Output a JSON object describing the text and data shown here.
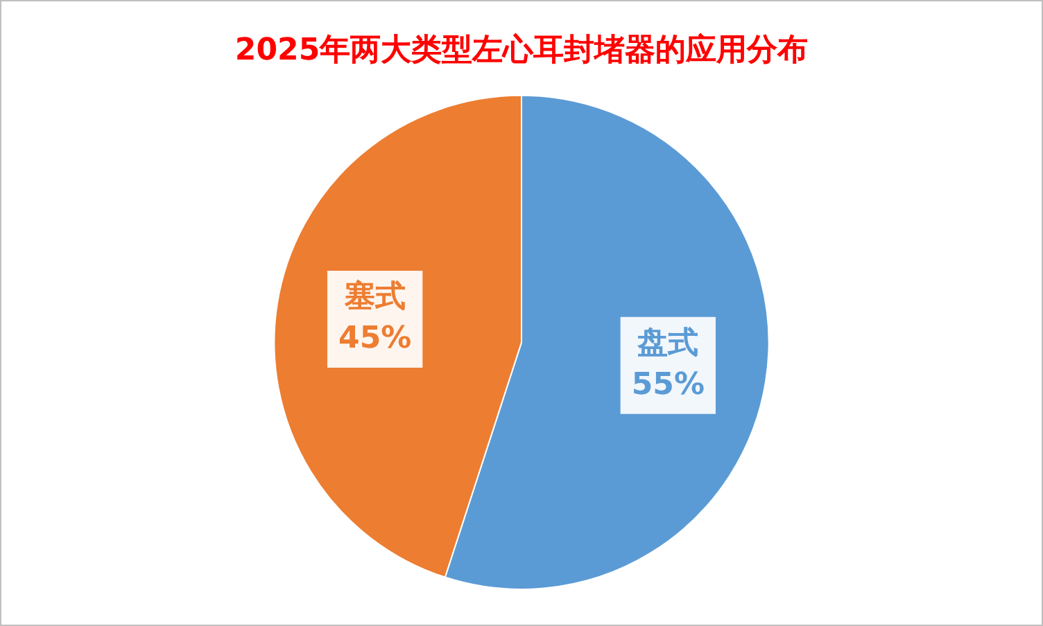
{
  "chart_data": {
    "type": "pie",
    "title": "2025年两大类型左心耳封堵器的应用分布",
    "categories": [
      "盘式",
      "塞式"
    ],
    "values": [
      55,
      45
    ],
    "colors": [
      "#5b9bd5",
      "#ed7d31"
    ],
    "value_labels": [
      "55%",
      "45%"
    ],
    "legend": false
  }
}
